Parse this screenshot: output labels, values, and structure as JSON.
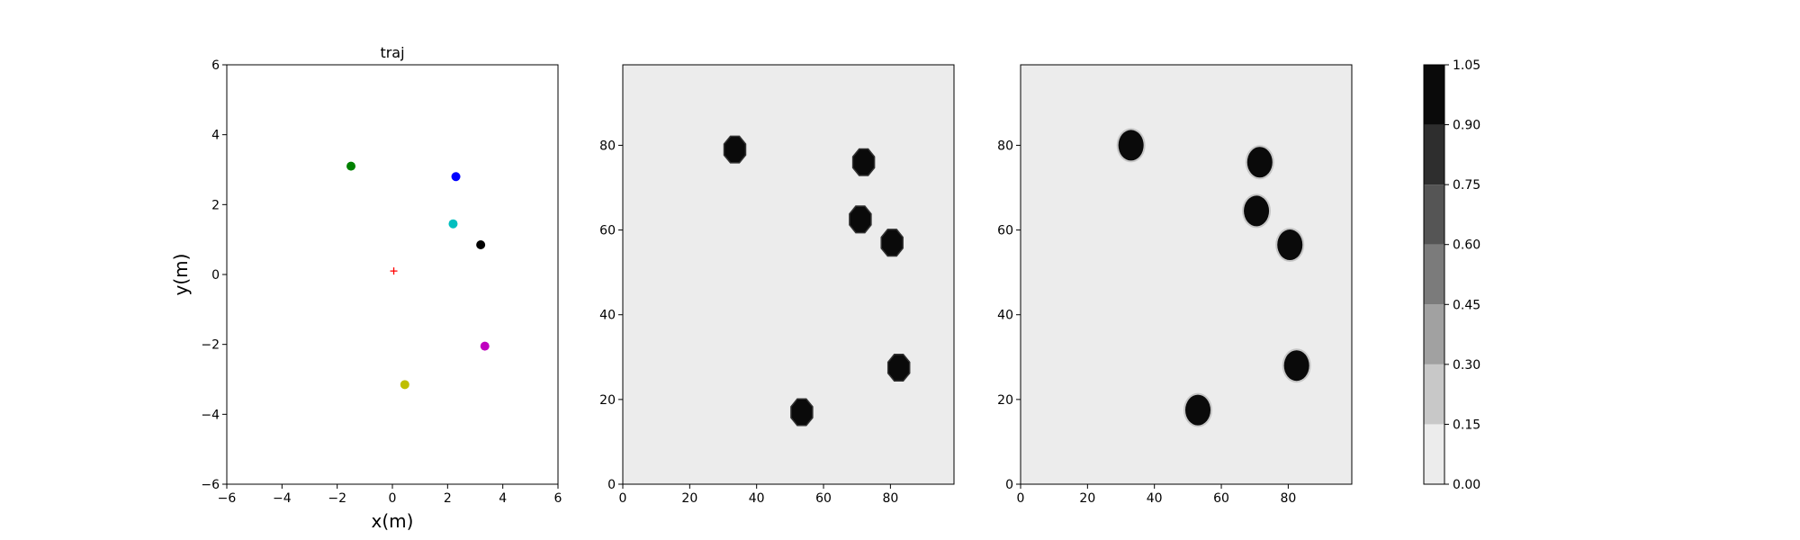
{
  "chart_data": [
    {
      "type": "scatter",
      "title": "traj",
      "xlabel": "x(m)",
      "ylabel": "y(m)",
      "xlim": [
        -6,
        6
      ],
      "ylim": [
        -6,
        6
      ],
      "xticks": [
        "−6",
        "−4",
        "−2",
        "0",
        "2",
        "4",
        "6"
      ],
      "yticks": [
        "−6",
        "−4",
        "−2",
        "0",
        "2",
        "4",
        "6"
      ],
      "grid": false,
      "points": [
        {
          "x": -1.5,
          "y": 3.1,
          "color": "#008000",
          "marker": "circle"
        },
        {
          "x": 2.3,
          "y": 2.8,
          "color": "#0000ff",
          "marker": "circle"
        },
        {
          "x": 2.2,
          "y": 1.45,
          "color": "#00bfbf",
          "marker": "circle"
        },
        {
          "x": 3.2,
          "y": 0.85,
          "color": "#000000",
          "marker": "circle"
        },
        {
          "x": 3.35,
          "y": -2.05,
          "color": "#bf00bf",
          "marker": "circle"
        },
        {
          "x": 0.45,
          "y": -3.15,
          "color": "#bfbf00",
          "marker": "circle"
        },
        {
          "x": 0.05,
          "y": 0.1,
          "color": "#ff0000",
          "marker": "plus"
        }
      ]
    },
    {
      "type": "heatmap",
      "title": "",
      "xlim": [
        0,
        99
      ],
      "ylim": [
        0,
        99
      ],
      "xticks": [
        "0",
        "20",
        "40",
        "60",
        "80"
      ],
      "yticks": [
        "0",
        "20",
        "40",
        "60",
        "80"
      ],
      "background_value": 0.05,
      "blobs": [
        {
          "x": 33.5,
          "y": 79,
          "value": 1.0
        },
        {
          "x": 72,
          "y": 76,
          "value": 1.0
        },
        {
          "x": 71,
          "y": 62.5,
          "value": 1.0
        },
        {
          "x": 80.5,
          "y": 57,
          "value": 1.0
        },
        {
          "x": 82.5,
          "y": 27.5,
          "value": 1.0
        },
        {
          "x": 53.5,
          "y": 17,
          "value": 1.0
        }
      ]
    },
    {
      "type": "heatmap",
      "title": "",
      "xlim": [
        0,
        99
      ],
      "ylim": [
        0,
        99
      ],
      "xticks": [
        "0",
        "20",
        "40",
        "60",
        "80"
      ],
      "yticks": [
        "0",
        "20",
        "40",
        "60",
        "80"
      ],
      "background_value": 0.05,
      "blobs": [
        {
          "x": 33,
          "y": 80,
          "value": 1.0
        },
        {
          "x": 71.5,
          "y": 76,
          "value": 1.0
        },
        {
          "x": 70.5,
          "y": 64.5,
          "value": 1.0
        },
        {
          "x": 80.5,
          "y": 56.5,
          "value": 1.0
        },
        {
          "x": 82.5,
          "y": 28,
          "value": 1.0
        },
        {
          "x": 53,
          "y": 17.5,
          "value": 1.0
        }
      ]
    }
  ],
  "colorbar": {
    "levels": [
      "0.00",
      "0.15",
      "0.30",
      "0.45",
      "0.60",
      "0.75",
      "0.90",
      "1.05"
    ],
    "colors": [
      "#ececec",
      "#c8c8c8",
      "#a1a1a1",
      "#7b7b7b",
      "#555555",
      "#2e2e2e",
      "#0a0a0a"
    ]
  }
}
